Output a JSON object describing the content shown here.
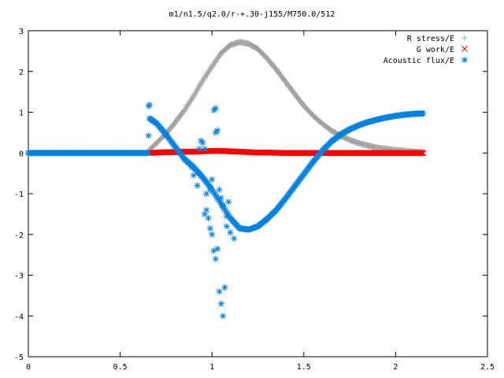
{
  "chart_data": {
    "type": "scatter",
    "title": "m1/n1.5/q2.0/r-+.30-j155/M750.0/512",
    "xlabel": "",
    "ylabel": "",
    "xlim": [
      0,
      2.5
    ],
    "ylim": [
      -5,
      3
    ],
    "x_ticks": [
      "0",
      "0.5",
      "1",
      "1.5",
      "2",
      "2.5"
    ],
    "y_ticks": [
      "3",
      "2",
      "1",
      "0",
      "-1",
      "-2",
      "-3",
      "-4",
      "-5"
    ],
    "legend_position": "top-right",
    "grid": false,
    "series": [
      {
        "name": "R stress/E",
        "marker": "plus-icon",
        "color": "#a0a0a0",
        "x": [
          0.66,
          0.7,
          0.75,
          0.8,
          0.85,
          0.9,
          0.95,
          1.0,
          1.05,
          1.1,
          1.15,
          1.2,
          1.25,
          1.3,
          1.35,
          1.4,
          1.45,
          1.5,
          1.55,
          1.6,
          1.65,
          1.7,
          1.75,
          1.8,
          1.85,
          1.9,
          1.95,
          2.0,
          2.05,
          2.1,
          2.15
        ],
        "y": [
          0.08,
          0.25,
          0.48,
          0.75,
          1.05,
          1.4,
          1.78,
          2.12,
          2.45,
          2.65,
          2.72,
          2.68,
          2.55,
          2.32,
          2.05,
          1.75,
          1.45,
          1.16,
          0.92,
          0.72,
          0.55,
          0.42,
          0.32,
          0.24,
          0.18,
          0.13,
          0.1,
          0.07,
          0.05,
          0.03,
          0.02
        ]
      },
      {
        "name": "G work/E",
        "marker": "cross-icon",
        "color": "#ff0000",
        "x": [
          0.66,
          0.7,
          0.75,
          0.8,
          0.85,
          0.9,
          0.95,
          1.0,
          1.05,
          1.1,
          1.15,
          1.2,
          1.25,
          1.3,
          1.4,
          1.5,
          1.6,
          1.7,
          1.8,
          1.9,
          2.0,
          2.1,
          2.15
        ],
        "y": [
          0.0,
          0.01,
          0.02,
          0.02,
          0.03,
          0.03,
          0.04,
          0.05,
          0.05,
          0.04,
          0.03,
          0.02,
          0.01,
          0.01,
          0.0,
          0.0,
          0.0,
          0.0,
          0.0,
          0.0,
          0.0,
          0.0,
          0.0
        ]
      },
      {
        "name": "Acoustic flux/E",
        "marker": "star-icon",
        "color": "#0080e0",
        "x": [
          0.0,
          0.05,
          0.1,
          0.15,
          0.2,
          0.25,
          0.3,
          0.35,
          0.4,
          0.45,
          0.5,
          0.55,
          0.6,
          0.65,
          0.66,
          0.7,
          0.75,
          0.8,
          0.85,
          0.9,
          0.95,
          1.0,
          1.05,
          1.1,
          1.15,
          1.2,
          1.25,
          1.3,
          1.35,
          1.4,
          1.45,
          1.5,
          1.55,
          1.6,
          1.65,
          1.7,
          1.75,
          1.8,
          1.85,
          1.9,
          1.95,
          2.0,
          2.05,
          2.1,
          2.15
        ],
        "y": [
          0.0,
          0.0,
          0.0,
          0.0,
          0.0,
          0.0,
          0.0,
          0.0,
          0.0,
          0.0,
          0.0,
          0.0,
          0.0,
          0.0,
          0.85,
          0.72,
          0.45,
          0.15,
          -0.15,
          -0.35,
          -0.6,
          -0.9,
          -1.25,
          -1.6,
          -1.85,
          -1.88,
          -1.8,
          -1.62,
          -1.4,
          -1.12,
          -0.82,
          -0.52,
          -0.22,
          0.05,
          0.28,
          0.45,
          0.58,
          0.68,
          0.76,
          0.82,
          0.87,
          0.91,
          0.94,
          0.96,
          0.97
        ]
      },
      {
        "name": "",
        "marker": "star-icon",
        "color": "#0080e0",
        "x": [
          0.655,
          0.66,
          0.89,
          0.9,
          0.92,
          0.93,
          0.94,
          0.95,
          0.96,
          0.97,
          0.98,
          0.99,
          1.0,
          1.01,
          1.02,
          1.03,
          1.04,
          1.05,
          1.06,
          1.07,
          1.08,
          1.09,
          1.02,
          1.03,
          1.02,
          1.01,
          1.0,
          0.99,
          0.97,
          0.96,
          1.04,
          1.05,
          1.06,
          1.08,
          1.1,
          1.12
        ],
        "y": [
          1.15,
          1.18,
          -0.35,
          -0.55,
          -0.8,
          0.1,
          0.3,
          0.25,
          0.1,
          -1.4,
          -1.6,
          -1.85,
          -2.0,
          -2.4,
          -2.6,
          -2.35,
          -3.4,
          -3.7,
          -4.0,
          -3.3,
          -1.8,
          -1.2,
          0.5,
          0.55,
          1.1,
          1.05,
          -0.65,
          -0.9,
          -1.0,
          -1.5,
          -0.9,
          -1.1,
          -1.3,
          -1.55,
          -1.95,
          -2.1
        ]
      }
    ]
  }
}
